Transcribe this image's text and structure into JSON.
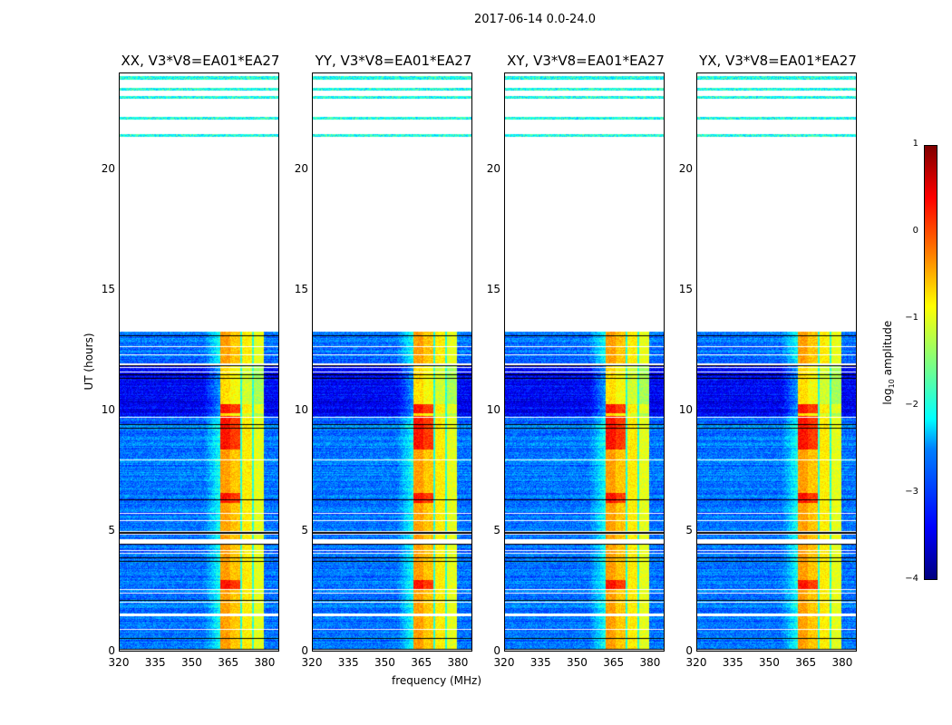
{
  "chart_data": {
    "type": "heatmap",
    "title": "2017-06-14 0.0-24.0",
    "xlabel": "frequency (MHz)",
    "ylabel": "UT (hours)",
    "xlim": [
      320,
      386
    ],
    "ylim": [
      0,
      24
    ],
    "xticks": [
      "320",
      "335",
      "350",
      "365",
      "380"
    ],
    "xtick_values": [
      320,
      335,
      350,
      365,
      380
    ],
    "yticks": [
      "0",
      "5",
      "10",
      "15",
      "20"
    ],
    "ytick_values": [
      0,
      5,
      10,
      15,
      20
    ],
    "panels": [
      {
        "title": "XX, V3*V8=EA01*EA27"
      },
      {
        "title": "YY, V3*V8=EA01*EA27"
      },
      {
        "title": "XY, V3*V8=EA01*EA27"
      },
      {
        "title": "YX, V3*V8=EA01*EA27"
      }
    ],
    "colorbar": {
      "label": "log10 amplitude",
      "label_main": "log",
      "label_sub": "10",
      "label_rest": " amplitude",
      "range": [
        -4,
        1
      ],
      "ticks": [
        "1",
        "0",
        "−1",
        "−2",
        "−3",
        "−4"
      ],
      "tick_values": [
        1,
        0,
        -1,
        -2,
        -3,
        -4
      ],
      "colormap": "jet"
    },
    "data_time_ranges_hours": [
      [
        0.1,
        1.5
      ],
      [
        1.6,
        4.5
      ],
      [
        4.65,
        11.9
      ],
      [
        12.0,
        13.3
      ],
      [
        21.35,
        21.5
      ],
      [
        22.1,
        22.2
      ],
      [
        22.95,
        23.05
      ],
      [
        23.3,
        23.4
      ],
      [
        23.75,
        23.9
      ]
    ],
    "rfi_band_mhz": [
      362,
      380
    ],
    "subbands_mhz": [
      [
        362,
        366
      ],
      [
        366,
        370
      ],
      [
        371,
        375
      ],
      [
        376,
        380
      ]
    ],
    "background_log_amp": -3.0,
    "band_log_amp": -0.6
  }
}
